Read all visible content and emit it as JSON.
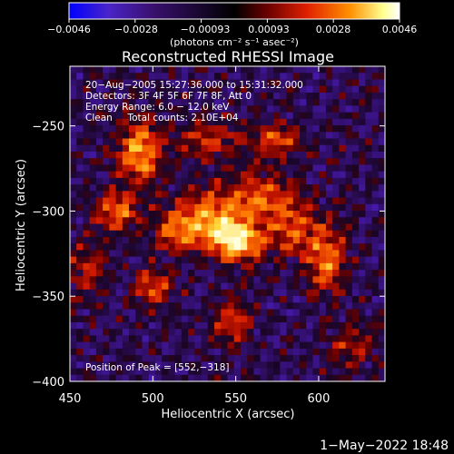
{
  "chart_data": {
    "type": "heatmap",
    "title": "Reconstructed RHESSI Image",
    "xlabel": "Heliocentric X (arcsec)",
    "ylabel": "Heliocentric Y (arcsec)",
    "xlim": [
      450,
      640
    ],
    "ylim": [
      -400,
      -215
    ],
    "x_ticks": [
      450,
      500,
      550,
      600
    ],
    "y_ticks": [
      -250,
      -300,
      -350,
      -400
    ],
    "x_tick_labels": [
      "450",
      "500",
      "550",
      "600"
    ],
    "y_tick_labels": [
      "−250",
      "−300",
      "−350",
      "−400"
    ],
    "colorbar": {
      "range": [
        -0.0046,
        0.0046
      ],
      "tick_labels": [
        "−0.0046",
        "−0.0028",
        "−0.00093",
        "0.00093",
        "0.0028",
        "0.0046"
      ],
      "unit_label": "(photons cm⁻² s⁻¹ asec⁻²)",
      "colors": [
        "#0000ff",
        "#5a1aa8",
        "#3a1070",
        "#000000",
        "#7a0000",
        "#e02000",
        "#ff8c00",
        "#ffff80",
        "#ffffff"
      ]
    },
    "info_lines": [
      "20−Aug−2005 15:27:36.000 to 15:31:32.000",
      "Detectors: 3F 4F 5F 6F 7F 8F, Att 0",
      "Energy Range: 6.0 − 12.0 keV",
      "Clean     Total counts: 2.10E+04"
    ],
    "peak_label": "Position of Peak = [552,−318]",
    "peak": {
      "x": 552,
      "y": -318
    },
    "sources": [
      {
        "x": 552,
        "y": -318,
        "sx": 10,
        "sy": 8,
        "amp": 1.0
      },
      {
        "x": 535,
        "y": -305,
        "sx": 14,
        "sy": 12,
        "amp": 0.75
      },
      {
        "x": 565,
        "y": -292,
        "sx": 12,
        "sy": 10,
        "amp": 0.6
      },
      {
        "x": 585,
        "y": -310,
        "sx": 10,
        "sy": 12,
        "amp": 0.55
      },
      {
        "x": 492,
        "y": -265,
        "sx": 9,
        "sy": 13,
        "amp": 0.85
      },
      {
        "x": 478,
        "y": -300,
        "sx": 9,
        "sy": 8,
        "amp": 0.65
      },
      {
        "x": 515,
        "y": -312,
        "sx": 10,
        "sy": 8,
        "amp": 0.55
      },
      {
        "x": 500,
        "y": -345,
        "sx": 8,
        "sy": 7,
        "amp": 0.6
      },
      {
        "x": 548,
        "y": -365,
        "sx": 8,
        "sy": 9,
        "amp": 0.55
      },
      {
        "x": 605,
        "y": -328,
        "sx": 8,
        "sy": 14,
        "amp": 0.7
      },
      {
        "x": 535,
        "y": -258,
        "sx": 14,
        "sy": 8,
        "amp": 0.45
      },
      {
        "x": 460,
        "y": -335,
        "sx": 9,
        "sy": 12,
        "amp": 0.4
      },
      {
        "x": 620,
        "y": -380,
        "sx": 10,
        "sy": 10,
        "amp": 0.35
      },
      {
        "x": 575,
        "y": -258,
        "sx": 10,
        "sy": 7,
        "amp": 0.5
      }
    ]
  },
  "timestamp": "1−May−2022 18:48"
}
